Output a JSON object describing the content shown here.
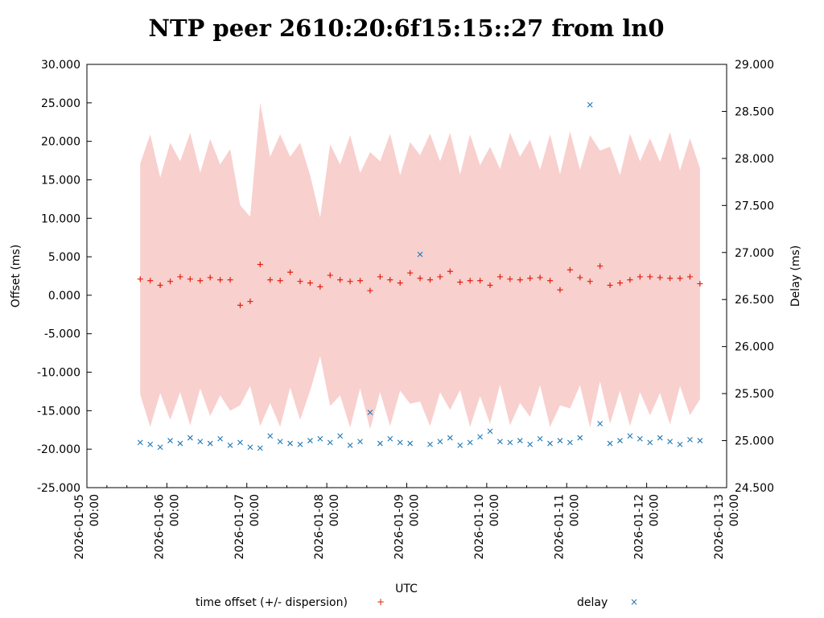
{
  "chart_data": {
    "type": "scatter",
    "title": "NTP peer 2610:20:6f15:15::27 from ln0",
    "xlabel": "UTC",
    "ylabel": "Offset (ms)",
    "y2label": "Delay (ms)",
    "x_origin": "2026-01-05 00:00",
    "x_unit": "hours since 2026-01-05 00:00",
    "xlim": [
      0,
      192
    ],
    "ylim": [
      -25,
      30
    ],
    "y2lim": [
      24.5,
      29
    ],
    "x_ticks": [
      {
        "l1": "2026-01-05",
        "l2": "00:00"
      },
      {
        "l1": "2026-01-06",
        "l2": "00:00"
      },
      {
        "l1": "2026-01-07",
        "l2": "00:00"
      },
      {
        "l1": "2026-01-08",
        "l2": "00:00"
      },
      {
        "l1": "2026-01-09",
        "l2": "00:00"
      },
      {
        "l1": "2026-01-10",
        "l2": "00:00"
      },
      {
        "l1": "2026-01-11",
        "l2": "00:00"
      },
      {
        "l1": "2026-01-12",
        "l2": "00:00"
      },
      {
        "l1": "2026-01-13",
        "l2": "00:00"
      }
    ],
    "y_ticks": [
      "-25.000",
      "-20.000",
      "-15.000",
      "-10.000",
      "-5.000",
      "0.000",
      "5.000",
      "10.000",
      "15.000",
      "20.000",
      "25.000",
      "30.000"
    ],
    "y2_ticks": [
      "24.500",
      "25.000",
      "25.500",
      "26.000",
      "26.500",
      "27.000",
      "27.500",
      "28.000",
      "28.500",
      "29.000"
    ],
    "legend": {
      "placement": "bottom",
      "offset_label": "time offset (+/- dispersion)",
      "delay_label": "delay",
      "offset_marker": "+",
      "delay_marker": "×"
    },
    "colors": {
      "offset": "#e0200f",
      "band": "#f8d0ce",
      "delay": "#1f78b4"
    },
    "hours": [
      16,
      19,
      22,
      25,
      28,
      31,
      34,
      37,
      40,
      43,
      46,
      49,
      52,
      55,
      58,
      61,
      64,
      67,
      70,
      73,
      76,
      79,
      82,
      85,
      88,
      91,
      94,
      97,
      100,
      103,
      106,
      109,
      112,
      115,
      118,
      121,
      124,
      127,
      130,
      133,
      136,
      139,
      142,
      145,
      148,
      151,
      154,
      157,
      160,
      163,
      166,
      169,
      172,
      175,
      178,
      181,
      184
    ],
    "series": [
      {
        "name": "time offset",
        "values": [
          2.1,
          1.9,
          1.3,
          1.8,
          2.4,
          2.1,
          1.9,
          2.3,
          2.0,
          2.0,
          -1.3,
          -0.8,
          4.0,
          2.0,
          1.9,
          3.0,
          1.8,
          1.6,
          1.1,
          2.6,
          2.0,
          1.8,
          1.9,
          0.6,
          2.4,
          2.0,
          1.6,
          2.9,
          2.2,
          2.0,
          2.4,
          3.1,
          1.7,
          1.9,
          1.9,
          1.3,
          2.4,
          2.1,
          2.0,
          2.2,
          2.3,
          1.9,
          0.7,
          3.3,
          2.3,
          1.8,
          3.8,
          1.3,
          1.6,
          2.0,
          2.4,
          2.4,
          2.3,
          2.2,
          2.2,
          2.4,
          1.5
        ]
      },
      {
        "name": "dispersion",
        "values": [
          15,
          19,
          14,
          18,
          15,
          19,
          14,
          18,
          15,
          17,
          13,
          11,
          21,
          16,
          19,
          15,
          18,
          14,
          9,
          17,
          15,
          19,
          14,
          18,
          15,
          19,
          14,
          17,
          16,
          19,
          15,
          18,
          14,
          19,
          15,
          18,
          14,
          19,
          16,
          18,
          14,
          19,
          15,
          18,
          14,
          19,
          15,
          18,
          14,
          19,
          15,
          18,
          15,
          19,
          14,
          18,
          15
        ]
      },
      {
        "name": "delay",
        "values": [
          24.98,
          24.96,
          24.93,
          25.0,
          24.97,
          25.03,
          24.99,
          24.97,
          25.02,
          24.95,
          24.98,
          24.93,
          24.92,
          25.05,
          24.99,
          24.97,
          24.96,
          25.0,
          25.02,
          24.98,
          25.05,
          24.95,
          24.99,
          25.3,
          24.97,
          25.02,
          24.98,
          24.97,
          26.98,
          24.96,
          24.99,
          25.03,
          24.95,
          24.98,
          25.04,
          25.1,
          24.99,
          24.98,
          25.0,
          24.96,
          25.02,
          24.97,
          25.0,
          24.98,
          25.03,
          28.57,
          25.18,
          24.97,
          25.0,
          25.05,
          25.02,
          24.98,
          25.03,
          24.99,
          24.96,
          25.01,
          25.0
        ]
      }
    ]
  }
}
